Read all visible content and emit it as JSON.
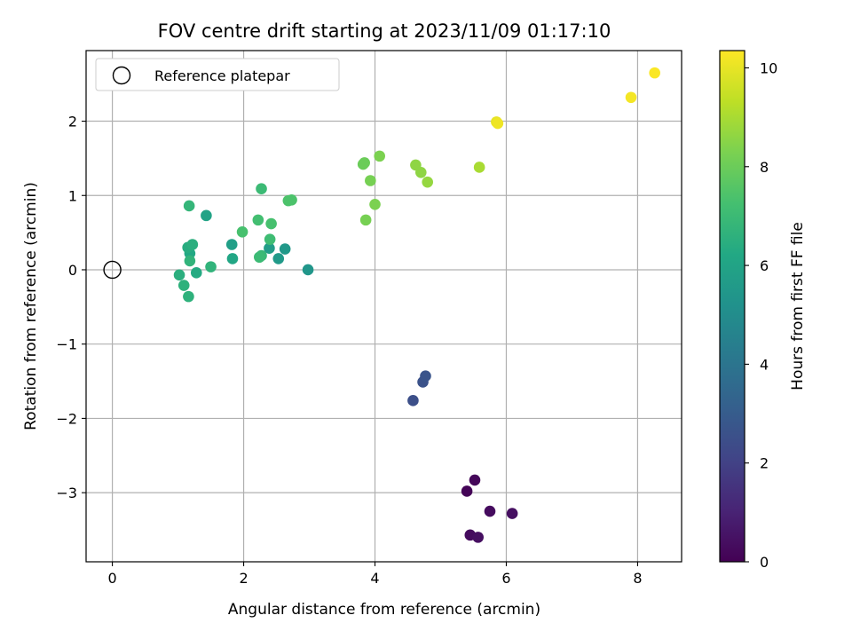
{
  "chart_data": {
    "type": "scatter",
    "title": "FOV centre drift starting at 2023/11/09 01:17:10",
    "xlabel": "Angular distance from reference (arcmin)",
    "ylabel": "Rotation from reference (arcmin)",
    "xlim": [
      -0.4,
      8.67
    ],
    "ylim": [
      -3.93,
      2.95
    ],
    "xticks": [
      0,
      2,
      4,
      6,
      8
    ],
    "yticks": [
      -3,
      -2,
      -1,
      0,
      1,
      2
    ],
    "grid": true,
    "legend": {
      "position": "upper-left",
      "entries": [
        "Reference platepar"
      ]
    },
    "reference_point": {
      "x": 0,
      "y": 0
    },
    "colorbar": {
      "label": "Hours from first FF file",
      "colormap": "viridis",
      "range": [
        0,
        10.35
      ],
      "ticks": [
        0,
        2,
        4,
        6,
        8,
        10
      ]
    },
    "points": [
      {
        "x": 5.4,
        "y": -2.98,
        "c": 0.1
      },
      {
        "x": 5.52,
        "y": -2.83,
        "c": 0.2
      },
      {
        "x": 5.75,
        "y": -3.25,
        "c": 0.3
      },
      {
        "x": 6.09,
        "y": -3.28,
        "c": 0.4
      },
      {
        "x": 5.45,
        "y": -3.57,
        "c": 0.3
      },
      {
        "x": 5.57,
        "y": -3.6,
        "c": 0.4
      },
      {
        "x": 4.58,
        "y": -1.76,
        "c": 2.5
      },
      {
        "x": 4.73,
        "y": -1.51,
        "c": 2.6
      },
      {
        "x": 4.77,
        "y": -1.43,
        "c": 2.7
      },
      {
        "x": 2.98,
        "y": 0.0,
        "c": 5.4
      },
      {
        "x": 2.63,
        "y": 0.28,
        "c": 5.5
      },
      {
        "x": 2.53,
        "y": 0.15,
        "c": 5.6
      },
      {
        "x": 2.39,
        "y": 0.29,
        "c": 5.7
      },
      {
        "x": 1.82,
        "y": 0.34,
        "c": 5.8
      },
      {
        "x": 1.43,
        "y": 0.73,
        "c": 6.0
      },
      {
        "x": 1.83,
        "y": 0.15,
        "c": 6.1
      },
      {
        "x": 1.18,
        "y": 0.22,
        "c": 6.2
      },
      {
        "x": 1.28,
        "y": -0.04,
        "c": 6.3
      },
      {
        "x": 1.15,
        "y": 0.3,
        "c": 6.4
      },
      {
        "x": 1.22,
        "y": 0.34,
        "c": 6.5
      },
      {
        "x": 1.02,
        "y": -0.07,
        "c": 6.5
      },
      {
        "x": 1.09,
        "y": -0.21,
        "c": 6.6
      },
      {
        "x": 1.16,
        "y": -0.36,
        "c": 6.6
      },
      {
        "x": 1.18,
        "y": 0.12,
        "c": 6.7
      },
      {
        "x": 1.5,
        "y": 0.04,
        "c": 6.7
      },
      {
        "x": 1.17,
        "y": 0.86,
        "c": 6.8
      },
      {
        "x": 2.27,
        "y": 0.19,
        "c": 6.9
      },
      {
        "x": 2.24,
        "y": 0.17,
        "c": 7.0
      },
      {
        "x": 2.27,
        "y": 1.09,
        "c": 7.0
      },
      {
        "x": 2.4,
        "y": 0.41,
        "c": 7.1
      },
      {
        "x": 2.22,
        "y": 0.67,
        "c": 7.2
      },
      {
        "x": 2.42,
        "y": 0.62,
        "c": 7.3
      },
      {
        "x": 1.98,
        "y": 0.51,
        "c": 7.3
      },
      {
        "x": 2.68,
        "y": 0.93,
        "c": 7.4
      },
      {
        "x": 2.73,
        "y": 0.94,
        "c": 7.4
      },
      {
        "x": 3.82,
        "y": 1.42,
        "c": 8.0
      },
      {
        "x": 3.84,
        "y": 1.44,
        "c": 8.0
      },
      {
        "x": 3.86,
        "y": 0.67,
        "c": 8.2
      },
      {
        "x": 3.93,
        "y": 1.2,
        "c": 8.2
      },
      {
        "x": 4.0,
        "y": 0.88,
        "c": 8.3
      },
      {
        "x": 4.07,
        "y": 1.53,
        "c": 8.3
      },
      {
        "x": 4.62,
        "y": 1.41,
        "c": 8.6
      },
      {
        "x": 4.7,
        "y": 1.31,
        "c": 8.6
      },
      {
        "x": 4.8,
        "y": 1.18,
        "c": 8.7
      },
      {
        "x": 5.59,
        "y": 1.38,
        "c": 9.0
      },
      {
        "x": 5.85,
        "y": 1.99,
        "c": 10.0
      },
      {
        "x": 5.87,
        "y": 1.97,
        "c": 10.1
      },
      {
        "x": 7.9,
        "y": 2.32,
        "c": 10.2
      },
      {
        "x": 8.26,
        "y": 2.65,
        "c": 10.3
      }
    ]
  }
}
